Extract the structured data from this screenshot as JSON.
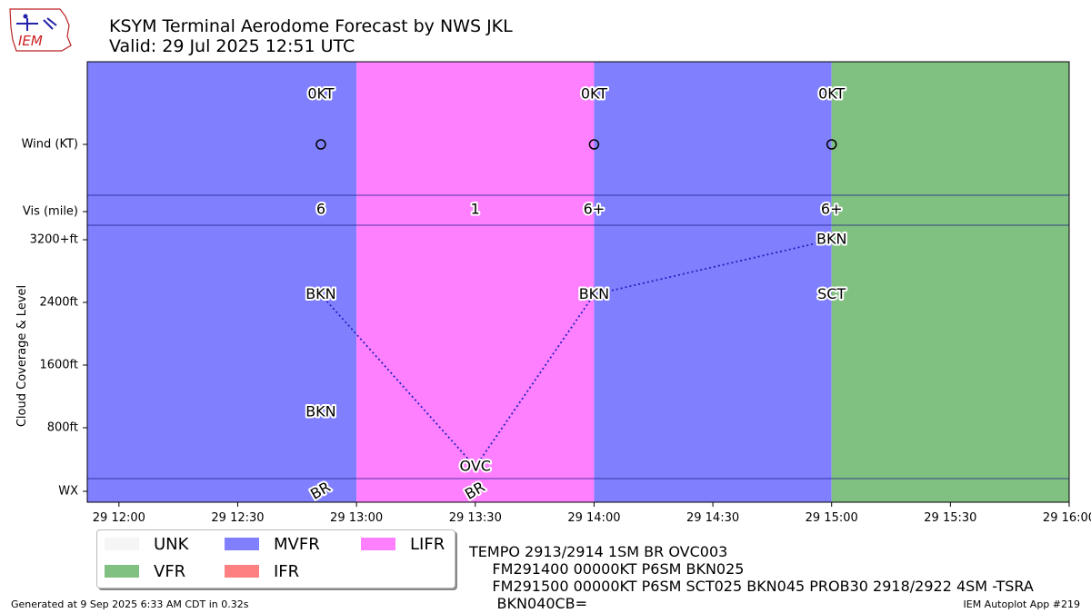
{
  "header": {
    "title": "KSYM Terminal Aerodome Forecast by NWS JKL",
    "subtitle": "Valid: 29 Jul 2025 12:51 UTC",
    "logo_text": "IEM"
  },
  "chart_data": {
    "type": "timeline",
    "x_range": [
      "29 11:52",
      "29 16:00"
    ],
    "x_ticks": [
      "29 12:00",
      "29 12:30",
      "29 13:00",
      "29 13:30",
      "29 14:00",
      "29 14:30",
      "29 15:00",
      "29 15:30",
      "29 16:00"
    ],
    "y_label": "Cloud Coverage & Level",
    "row_labels": {
      "wind": "Wind (KT)",
      "vis": "Vis (mile)",
      "wx": "WX"
    },
    "cloud_ticks": [
      "3200+ft",
      "2400ft",
      "1600ft",
      "800ft"
    ],
    "cloud_tick_values": [
      3200,
      2400,
      1600,
      800
    ],
    "category_bands": [
      {
        "start": "29 11:52",
        "end": "29 13:00",
        "category": "MVFR"
      },
      {
        "start": "29 13:00",
        "end": "29 14:00",
        "category": "LIFR"
      },
      {
        "start": "29 14:00",
        "end": "29 15:00",
        "category": "MVFR"
      },
      {
        "start": "29 15:00",
        "end": "29 16:00",
        "category": "VFR"
      }
    ],
    "forecasts": [
      {
        "time": "29 12:51",
        "wind": "0KT",
        "vis": "6",
        "wx": "BR"
      },
      {
        "time": "29 13:30",
        "vis": "1",
        "wx": "BR"
      },
      {
        "time": "29 14:00",
        "wind": "0KT",
        "vis": "6+"
      },
      {
        "time": "29 15:00",
        "wind": "0KT",
        "vis": "6+"
      }
    ],
    "cloud_labels": [
      {
        "time": "29 12:51",
        "level": 1000,
        "cover": "BKN"
      },
      {
        "time": "29 12:51",
        "level": 2500,
        "cover": "BKN"
      },
      {
        "time": "29 13:30",
        "level": 300,
        "cover": "OVC"
      },
      {
        "time": "29 14:00",
        "level": 2500,
        "cover": "BKN"
      },
      {
        "time": "29 15:00",
        "level": 2500,
        "cover": "SCT"
      },
      {
        "time": "29 15:00",
        "level": 3200,
        "cover": "BKN"
      }
    ],
    "ceiling_line": [
      {
        "time": "29 12:51",
        "level": 2500
      },
      {
        "time": "29 13:30",
        "level": 300
      },
      {
        "time": "29 14:00",
        "level": 2500
      },
      {
        "time": "29 15:00",
        "level": 3200
      }
    ],
    "legend": [
      {
        "label": "UNK",
        "color": "#f5f5f5"
      },
      {
        "label": "MVFR",
        "color": "#8080ff"
      },
      {
        "label": "LIFR",
        "color": "#ff80ff"
      },
      {
        "label": "VFR",
        "color": "#80c080"
      },
      {
        "label": "IFR",
        "color": "#ff8080"
      }
    ],
    "category_colors": {
      "UNK": "#f5f5f5",
      "VFR": "#80c080",
      "MVFR": "#8080ff",
      "IFR": "#ff8080",
      "LIFR": "#ff80ff"
    }
  },
  "raw_taf": "TEMPO 2913/2914 1SM BR OVC003\n     FM291400 00000KT P6SM BKN025\n     FM291500 00000KT P6SM SCT025 BKN045 PROB30 2918/2922 4SM -TSRA\n      BKN040CB=",
  "footer": {
    "generated": "Generated at 9 Sep 2025 6:33 AM CDT in 0.32s",
    "app": "IEM Autoplot App #219"
  }
}
